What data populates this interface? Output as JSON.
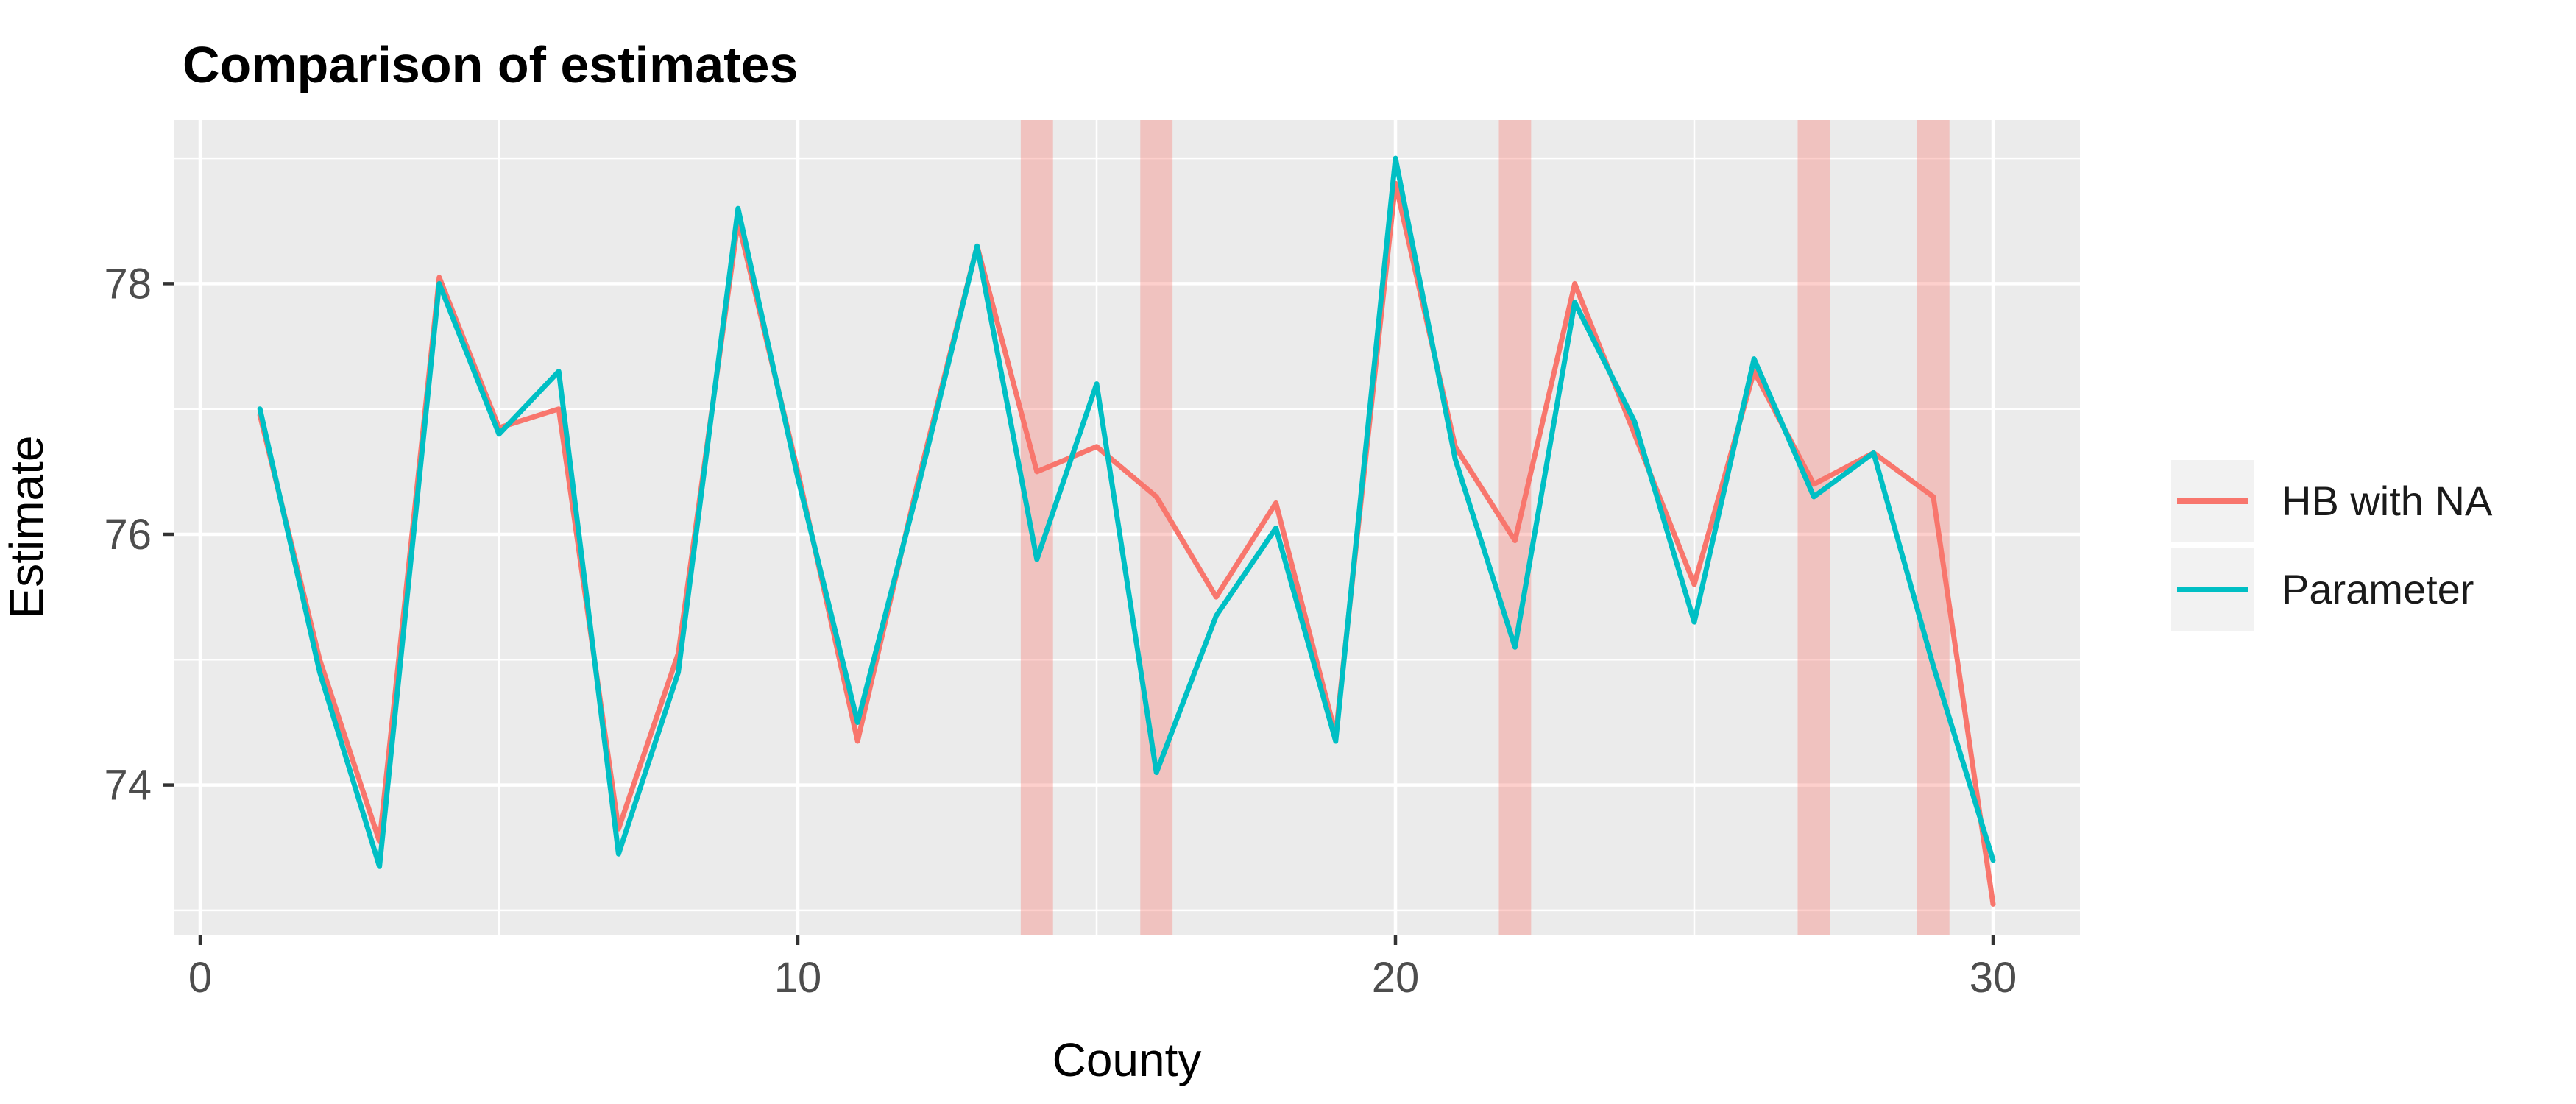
{
  "title": "Comparison of estimates",
  "axes": {
    "x": {
      "label": "County",
      "ticks": [
        0,
        10,
        20,
        30
      ],
      "minor_ticks": [
        5,
        15,
        25
      ],
      "range": [
        -0.45,
        31.45
      ]
    },
    "y": {
      "label": "Estimate",
      "ticks": [
        74,
        76,
        78
      ],
      "minor_ticks": [
        73,
        75,
        77,
        79
      ],
      "range": [
        72.81,
        79.31
      ]
    }
  },
  "legend": {
    "items": [
      {
        "label": "HB with NA",
        "color": "#F8766D"
      },
      {
        "label": "Parameter",
        "color": "#00BFC4"
      }
    ]
  },
  "colors": {
    "panel_background": "#EBEBEB",
    "gridline": "#FFFFFF",
    "tick_mark": "#333333",
    "tick_label": "#4d4d4d",
    "band_fill": "rgba(248,118,109,0.35)",
    "legend_key_background": "#F2F2F2",
    "series_hb": "#F8766D",
    "series_parameter": "#00BFC4"
  },
  "chart_data": {
    "type": "line",
    "title": "Comparison of estimates",
    "xlabel": "County",
    "ylabel": "Estimate",
    "x": [
      1,
      2,
      3,
      4,
      5,
      6,
      7,
      8,
      9,
      10,
      11,
      12,
      13,
      14,
      15,
      16,
      17,
      18,
      19,
      20,
      21,
      22,
      23,
      24,
      25,
      26,
      27,
      28,
      29,
      30
    ],
    "series": [
      {
        "name": "HB with NA",
        "color": "#F8766D",
        "values": [
          76.95,
          75.0,
          73.55,
          78.05,
          76.85,
          77.0,
          73.65,
          75.05,
          78.5,
          76.5,
          74.35,
          76.4,
          78.3,
          76.5,
          76.7,
          76.3,
          75.5,
          76.25,
          74.4,
          78.8,
          76.7,
          75.95,
          78.0,
          76.8,
          75.6,
          77.3,
          76.4,
          76.65,
          76.3,
          73.05
        ]
      },
      {
        "name": "Parameter",
        "color": "#00BFC4",
        "values": [
          77.0,
          74.9,
          73.35,
          78.0,
          76.8,
          77.3,
          73.45,
          74.9,
          78.6,
          76.45,
          74.5,
          76.35,
          78.3,
          75.8,
          77.2,
          74.1,
          75.35,
          76.05,
          74.35,
          79.0,
          76.6,
          75.1,
          77.85,
          76.9,
          75.3,
          77.4,
          76.3,
          76.65,
          74.95,
          73.4
        ]
      }
    ],
    "highlight_bands": {
      "at_x": [
        14,
        16,
        22,
        27,
        29
      ],
      "halfwidth": 0.27,
      "color": "rgba(248,118,109,0.35)"
    },
    "x_ticks": [
      0,
      10,
      20,
      30
    ],
    "x_minor_ticks": [
      5,
      15,
      25
    ],
    "y_ticks": [
      74,
      76,
      78
    ],
    "y_minor_ticks": [
      73,
      75,
      77,
      79
    ],
    "xlim": [
      -0.45,
      31.45
    ],
    "ylim": [
      72.81,
      79.31
    ],
    "grid": "on",
    "legend_position": "right"
  }
}
